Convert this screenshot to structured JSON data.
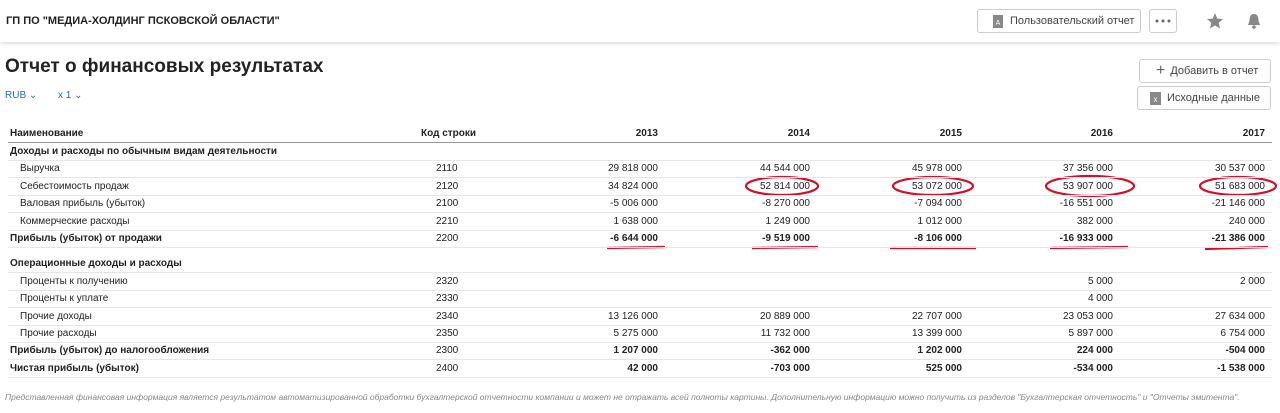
{
  "header": {
    "company": "ГП ПО \"МЕДИА-ХОЛДИНГ ПСКОВСКОЙ ОБЛАСТИ\"",
    "custom_report_button": "Пользовательский отчет"
  },
  "report": {
    "title": "Отчет о финансовых результатах",
    "currency": "RUB",
    "multiplier": "x 1",
    "add_button": "Добавить в отчет",
    "source_button": "Исходные данные"
  },
  "table": {
    "columns": [
      "Наименование",
      "Код строки",
      "2013",
      "2014",
      "2015",
      "2016",
      "2017"
    ],
    "rows": [
      {
        "section": "Доходы и расходы по обычным видам деятельности"
      },
      {
        "name": "Выручка",
        "code": "2110",
        "values": [
          "29 818 000",
          "44 544 000",
          "45 978 000",
          "37 356 000",
          "30 537 000"
        ]
      },
      {
        "name": "Себестоимость продаж",
        "code": "2120",
        "values": [
          "34 824 000",
          "52 814 000",
          "53 072 000",
          "53 907 000",
          "51 683 000"
        ]
      },
      {
        "name": "Валовая прибыль (убыток)",
        "code": "2100",
        "values": [
          "-5 006 000",
          "-8 270 000",
          "-7 094 000",
          "-16 551 000",
          "-21 146 000"
        ]
      },
      {
        "name": "Коммерческие расходы",
        "code": "2210",
        "values": [
          "1 638 000",
          "1 249 000",
          "1 012 000",
          "382 000",
          "240 000"
        ]
      },
      {
        "name": "Прибыль (убыток) от продажи",
        "code": "2200",
        "bold": true,
        "values": [
          "-6 644 000",
          "-9 519 000",
          "-8 106 000",
          "-16 933 000",
          "-21 386 000"
        ]
      },
      {
        "section": "Операционные доходы и расходы"
      },
      {
        "name": "Проценты к получению",
        "code": "2320",
        "values": [
          null,
          null,
          null,
          "5 000",
          "2 000"
        ]
      },
      {
        "name": "Проценты к уплате",
        "code": "2330",
        "values": [
          null,
          null,
          null,
          "4 000",
          null
        ]
      },
      {
        "name": "Прочие доходы",
        "code": "2340",
        "values": [
          "13 126 000",
          "20 889 000",
          "22 707 000",
          "23 053 000",
          "27 634 000"
        ]
      },
      {
        "name": "Прочие расходы",
        "code": "2350",
        "values": [
          "5 275 000",
          "11 732 000",
          "13 399 000",
          "5 897 000",
          "6 754 000"
        ]
      },
      {
        "name": "Прибыль (убыток) до налогообложения",
        "code": "2300",
        "bold": true,
        "values": [
          "1 207 000",
          "-362 000",
          "1 202 000",
          "224 000",
          "-504 000"
        ]
      },
      {
        "name": "Чистая прибыль (убыток)",
        "code": "2400",
        "bold": true,
        "values": [
          "42 000",
          "-703 000",
          "525 000",
          "-534 000",
          "-1 538 000"
        ]
      }
    ]
  },
  "footer": "Представленная финансовая информация является результатом автоматизированной обработки бухгалтерской отчетности компании и может не отражать всей полноты картины. Дополнительную информацию можно получить из разделов \"Бухгалтерская отчетность\" и \"Отчеты эмитента\"."
}
